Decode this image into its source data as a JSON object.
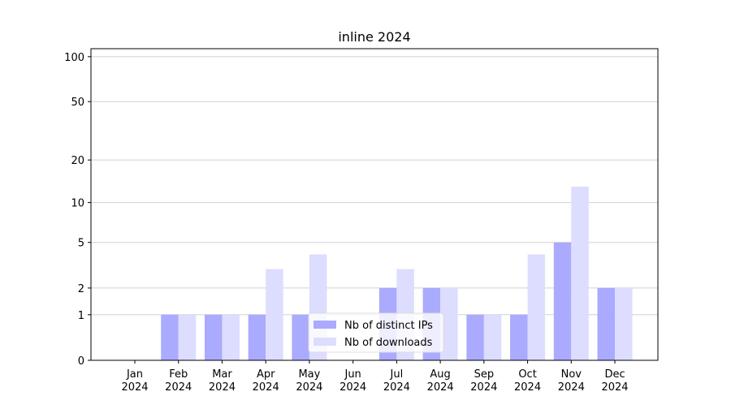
{
  "chart_data": {
    "type": "bar",
    "title": "inline 2024",
    "categories": [
      "Jan\n2024",
      "Feb\n2024",
      "Mar\n2024",
      "Apr\n2024",
      "May\n2024",
      "Jun\n2024",
      "Jul\n2024",
      "Aug\n2024",
      "Sep\n2024",
      "Oct\n2024",
      "Nov\n2024",
      "Dec\n2024"
    ],
    "series": [
      {
        "name": "Nb of distinct IPs",
        "color": "#aaaaff",
        "values": [
          0,
          1,
          1,
          1,
          1,
          0,
          2,
          2,
          1,
          1,
          5,
          2
        ]
      },
      {
        "name": "Nb of downloads",
        "color": "#ddddff",
        "values": [
          0,
          1,
          1,
          3,
          4,
          0,
          3,
          2,
          1,
          4,
          13,
          2
        ]
      }
    ],
    "scale": "log1p",
    "ylim": [
      0,
      113
    ],
    "yticks": [
      0,
      1,
      2,
      5,
      10,
      20,
      50,
      100
    ],
    "grid": true,
    "legend": "lower center"
  }
}
